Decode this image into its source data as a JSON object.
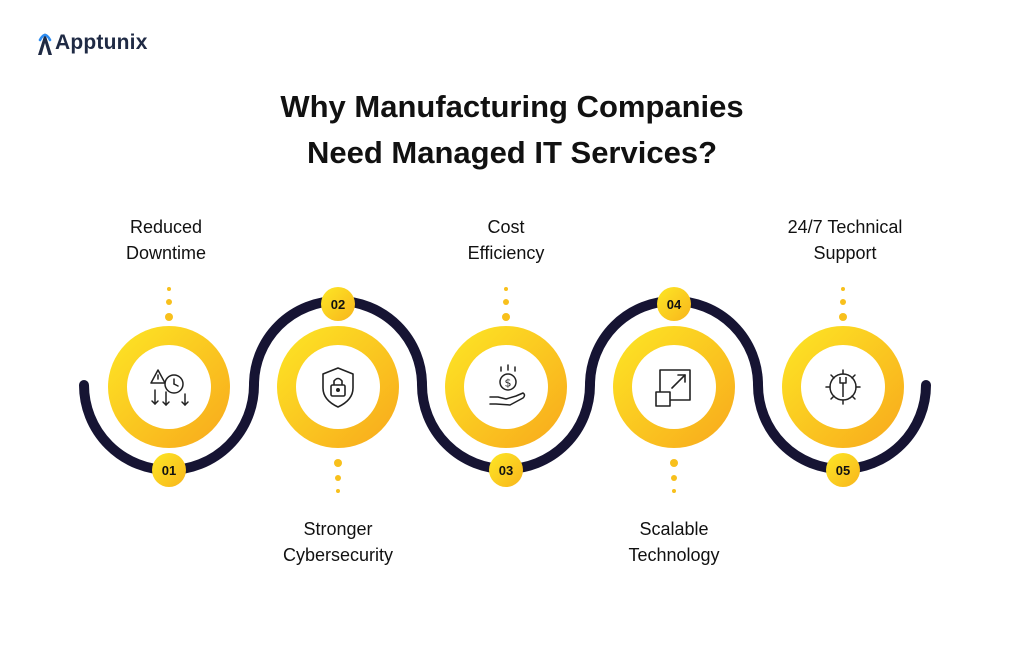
{
  "brand": {
    "name": "Apptunix"
  },
  "title": {
    "line1": "Why Manufacturing Companies",
    "line2": "Need Managed IT Services?"
  },
  "steps": [
    {
      "number": "01",
      "label1": "Reduced",
      "label2": "Downtime",
      "icon": "downtime-clock-icon"
    },
    {
      "number": "02",
      "label1": "Stronger",
      "label2": "Cybersecurity",
      "icon": "shield-lock-icon"
    },
    {
      "number": "03",
      "label1": "Cost",
      "label2": "Efficiency",
      "icon": "hand-coin-icon"
    },
    {
      "number": "04",
      "label1": "Scalable",
      "label2": "Technology",
      "icon": "scale-arrow-icon"
    },
    {
      "number": "05",
      "label1": "24/7 Technical",
      "label2": "Support",
      "icon": "gear-wrench-icon"
    }
  ],
  "colors": {
    "accent_light": "#fde725",
    "accent_dark": "#f8b51c",
    "path": "#161433",
    "text": "#111111"
  }
}
